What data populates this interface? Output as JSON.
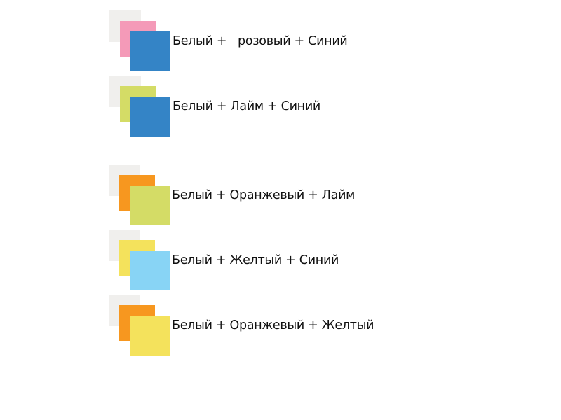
{
  "rows": [
    {
      "label": "Белый +   розовый + Синий",
      "colors": [
        "#f0efed",
        "#f49ab8",
        "#3484c6"
      ]
    },
    {
      "label": "Белый + Лайм + Синий",
      "colors": [
        "#f0efed",
        "#d4dc66",
        "#3484c6"
      ]
    },
    {
      "label": "Белый + Оранжевый + Лайм",
      "colors": [
        "#f0efed",
        "#f7971f",
        "#d4dc66"
      ]
    },
    {
      "label": "Белый + Желтый + Синий",
      "colors": [
        "#f0efed",
        "#f4e25c",
        "#88d4f5"
      ]
    },
    {
      "label": "Белый + Оранжевый + Желтый",
      "colors": [
        "#f0efed",
        "#f7971f",
        "#f4e25c"
      ]
    }
  ]
}
